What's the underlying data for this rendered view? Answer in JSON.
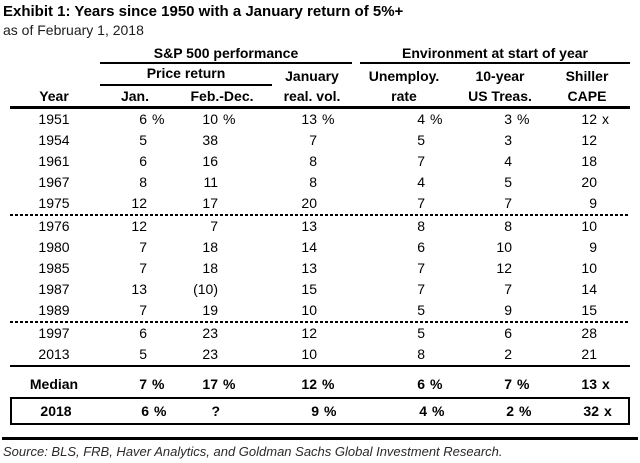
{
  "header": {
    "title": "Exhibit 1: Years since 1950 with a January return of 5%+",
    "subtitle": "as of February 1, 2018"
  },
  "table": {
    "group_headers": [
      {
        "label": "S&P 500 performance"
      },
      {
        "label": "Environment at start of year"
      }
    ],
    "sub_headers": {
      "price_return": "Price return",
      "january": "January",
      "unemployment": "Unemploy.",
      "treasury": "10-year",
      "shiller": "Shiller"
    },
    "column_headers": [
      "Year",
      "Jan.",
      "Feb.-Dec.",
      "real. vol.",
      "rate",
      "US Treas.",
      "CAPE"
    ],
    "rows": [
      {
        "year": "1951",
        "values": [
          "6",
          "10",
          "13",
          "4",
          "3",
          "12"
        ],
        "suffixes": [
          "%",
          "%",
          "%",
          "%",
          "%",
          "x"
        ],
        "separator_after": "none"
      },
      {
        "year": "1954",
        "values": [
          "5",
          "38",
          "7",
          "5",
          "3",
          "12"
        ],
        "separator_after": "none"
      },
      {
        "year": "1961",
        "values": [
          "6",
          "16",
          "8",
          "7",
          "4",
          "18"
        ],
        "separator_after": "none"
      },
      {
        "year": "1967",
        "values": [
          "8",
          "11",
          "8",
          "4",
          "5",
          "20"
        ],
        "separator_after": "none"
      },
      {
        "year": "1975",
        "values": [
          "12",
          "17",
          "20",
          "7",
          "7",
          "9"
        ],
        "separator_after": "dotted"
      },
      {
        "year": "1976",
        "values": [
          "12",
          "7",
          "13",
          "8",
          "8",
          "10"
        ],
        "separator_after": "none"
      },
      {
        "year": "1980",
        "values": [
          "7",
          "18",
          "14",
          "6",
          "10",
          "9"
        ],
        "separator_after": "none"
      },
      {
        "year": "1985",
        "values": [
          "7",
          "18",
          "13",
          "7",
          "12",
          "10"
        ],
        "separator_after": "none"
      },
      {
        "year": "1987",
        "values": [
          "13",
          "(10)",
          "15",
          "7",
          "7",
          "14"
        ],
        "separator_after": "none"
      },
      {
        "year": "1989",
        "values": [
          "7",
          "19",
          "10",
          "5",
          "9",
          "15"
        ],
        "separator_after": "dotted"
      },
      {
        "year": "1997",
        "values": [
          "6",
          "23",
          "12",
          "5",
          "6",
          "28"
        ],
        "separator_after": "none"
      },
      {
        "year": "2013",
        "values": [
          "5",
          "23",
          "10",
          "8",
          "2",
          "21"
        ],
        "separator_after": "solid"
      }
    ],
    "median_row": {
      "label": "Median",
      "values": [
        "7",
        "17",
        "12",
        "6",
        "7",
        "13"
      ],
      "suffixes": [
        "%",
        "%",
        "%",
        "%",
        "%",
        "x"
      ]
    },
    "row_2018": {
      "label": "2018",
      "values": [
        "6",
        "?",
        "9",
        "4",
        "2",
        "32"
      ],
      "suffixes": [
        "%",
        "",
        "%",
        "%",
        "%",
        "x"
      ]
    }
  },
  "footer": {
    "source": "Source: BLS, FRB, Haver Analytics, and Goldman Sachs Global Investment Research."
  },
  "chart_data": {
    "type": "table",
    "title": "Exhibit 1: Years since 1950 with a January return of 5%+",
    "subtitle": "as of February 1, 2018",
    "columns": [
      "Year",
      "S&P 500 price return Jan. (%)",
      "S&P 500 price return Feb.-Dec. (%)",
      "January real. vol. (%)",
      "Unemploy. rate (%)",
      "10-year US Treas. (%)",
      "Shiller CAPE (x)"
    ],
    "rows": [
      [
        "1951",
        6,
        10,
        13,
        4,
        3,
        12
      ],
      [
        "1954",
        5,
        38,
        7,
        5,
        3,
        12
      ],
      [
        "1961",
        6,
        16,
        8,
        7,
        4,
        18
      ],
      [
        "1967",
        8,
        11,
        8,
        4,
        5,
        20
      ],
      [
        "1975",
        12,
        17,
        20,
        7,
        7,
        9
      ],
      [
        "1976",
        12,
        7,
        13,
        8,
        8,
        10
      ],
      [
        "1980",
        7,
        18,
        14,
        6,
        10,
        9
      ],
      [
        "1985",
        7,
        18,
        13,
        7,
        12,
        10
      ],
      [
        "1987",
        13,
        -10,
        15,
        7,
        7,
        14
      ],
      [
        "1989",
        7,
        19,
        10,
        5,
        9,
        15
      ],
      [
        "1997",
        6,
        23,
        12,
        5,
        6,
        28
      ],
      [
        "2013",
        5,
        23,
        10,
        8,
        2,
        21
      ],
      [
        "Median",
        7,
        17,
        12,
        6,
        7,
        13
      ],
      [
        "2018",
        6,
        "?",
        9,
        4,
        2,
        32
      ]
    ]
  }
}
